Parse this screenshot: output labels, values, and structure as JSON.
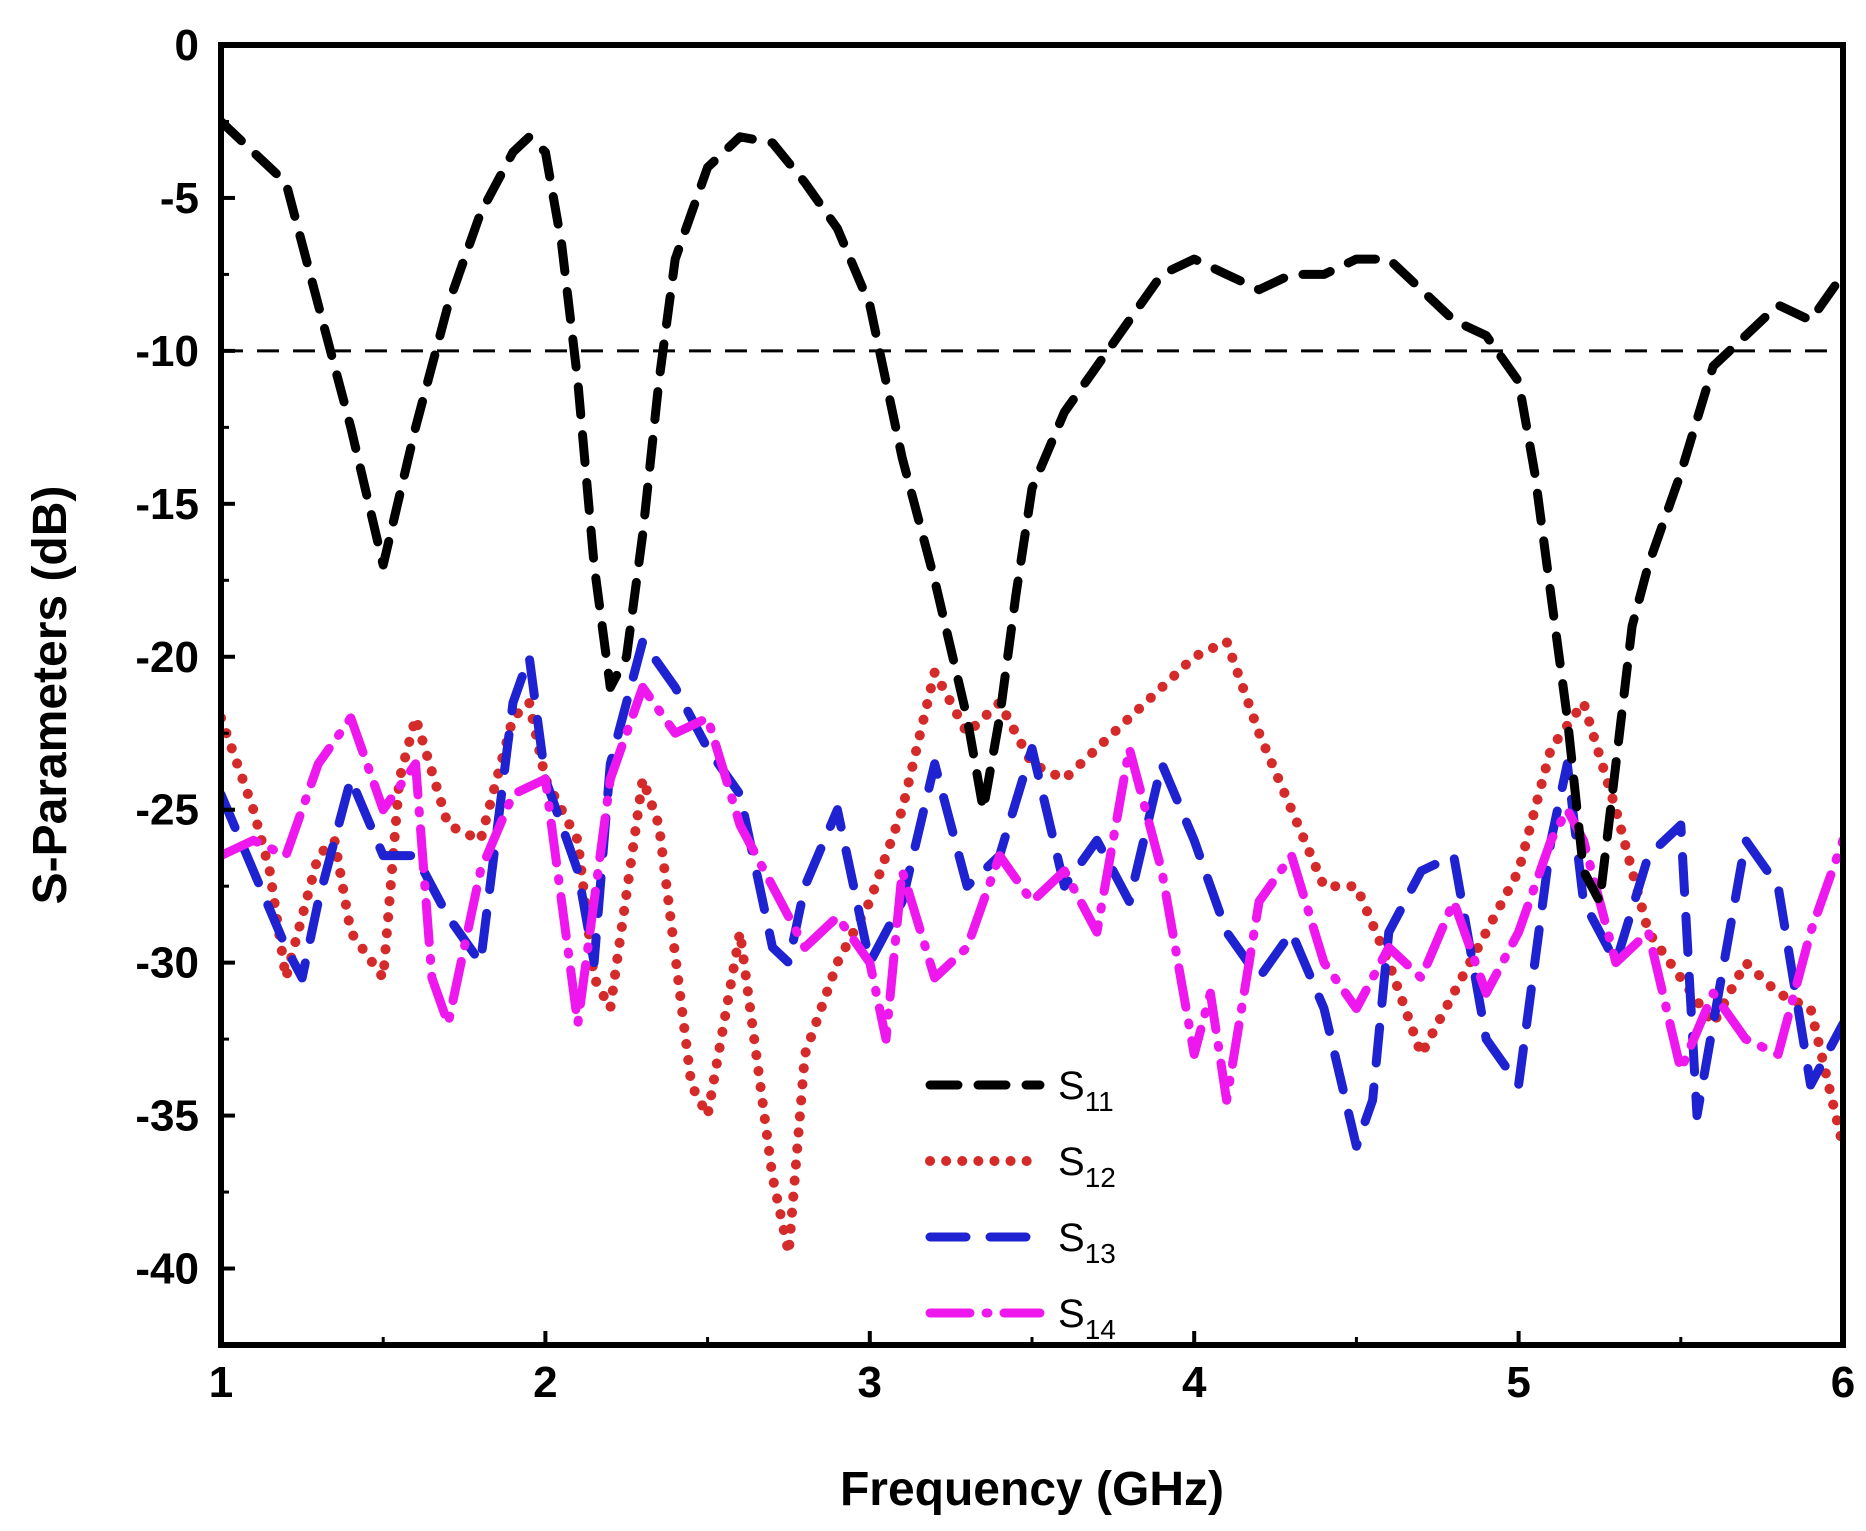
{
  "chart_data": {
    "type": "line",
    "title": "",
    "xlabel": "Frequency (GHz)",
    "ylabel": "S-Parameters (dB)",
    "xlim": [
      1,
      6
    ],
    "ylim": [
      -42.5,
      0
    ],
    "xticks": [
      1,
      2,
      3,
      4,
      5,
      6
    ],
    "yticks": [
      0,
      -5,
      -10,
      -15,
      -20,
      -25,
      -30,
      -35,
      -40
    ],
    "xtick_labels": [
      "1",
      "2",
      "3",
      "4",
      "5",
      "6"
    ],
    "ytick_labels": [
      "0",
      "-5",
      "-10",
      "-15",
      "-20",
      "-25",
      "-30",
      "-35",
      "-40"
    ],
    "reference_line": {
      "y": -10,
      "style": "dashed"
    },
    "legend_position": "bottom-center",
    "series": [
      {
        "name": "S11",
        "label_main": "S",
        "label_sub": "11",
        "color": "#000000",
        "style": "dash",
        "x": [
          1.0,
          1.1,
          1.2,
          1.3,
          1.4,
          1.5,
          1.6,
          1.7,
          1.8,
          1.9,
          1.95,
          2.0,
          2.05,
          2.1,
          2.15,
          2.2,
          2.25,
          2.3,
          2.35,
          2.4,
          2.5,
          2.6,
          2.7,
          2.8,
          2.9,
          3.0,
          3.05,
          3.1,
          3.2,
          3.3,
          3.35,
          3.4,
          3.45,
          3.5,
          3.6,
          3.7,
          3.8,
          3.9,
          4.0,
          4.1,
          4.2,
          4.3,
          4.4,
          4.5,
          4.6,
          4.7,
          4.8,
          4.9,
          5.0,
          5.05,
          5.1,
          5.15,
          5.2,
          5.25,
          5.3,
          5.35,
          5.4,
          5.5,
          5.6,
          5.7,
          5.8,
          5.9,
          6.0
        ],
        "y": [
          -2.5,
          -3.5,
          -4.5,
          -8.5,
          -12.5,
          -17.0,
          -12.5,
          -8.5,
          -5.5,
          -3.5,
          -3.0,
          -3.5,
          -6.5,
          -11.0,
          -17.0,
          -21.0,
          -20.0,
          -16.0,
          -11.0,
          -7.0,
          -4.0,
          -3.0,
          -3.2,
          -4.5,
          -6.0,
          -8.5,
          -11.0,
          -13.5,
          -17.5,
          -22.0,
          -25.0,
          -22.0,
          -18.0,
          -14.5,
          -12.0,
          -10.5,
          -9.0,
          -7.5,
          -7.0,
          -7.5,
          -8.0,
          -7.5,
          -7.5,
          -7.0,
          -7.0,
          -8.0,
          -9.0,
          -9.5,
          -11.0,
          -14.0,
          -18.0,
          -22.0,
          -27.0,
          -28.0,
          -23.5,
          -19.0,
          -17.0,
          -14.0,
          -10.5,
          -9.5,
          -8.5,
          -9.0,
          -7.5
        ]
      },
      {
        "name": "S12",
        "label_main": "S",
        "label_sub": "12",
        "color": "#d42a2a",
        "style": "dot",
        "x": [
          1.0,
          1.1,
          1.15,
          1.2,
          1.3,
          1.35,
          1.4,
          1.5,
          1.55,
          1.6,
          1.7,
          1.8,
          1.9,
          1.95,
          2.0,
          2.1,
          2.15,
          2.2,
          2.3,
          2.35,
          2.45,
          2.5,
          2.6,
          2.7,
          2.75,
          2.8,
          2.9,
          3.0,
          3.1,
          3.2,
          3.3,
          3.4,
          3.5,
          3.6,
          3.7,
          3.8,
          3.9,
          4.0,
          4.1,
          4.2,
          4.3,
          4.4,
          4.5,
          4.6,
          4.7,
          4.8,
          4.9,
          5.0,
          5.1,
          5.2,
          5.3,
          5.4,
          5.5,
          5.6,
          5.7,
          5.8,
          5.9,
          6.0
        ],
        "y": [
          -22.0,
          -25.0,
          -27.0,
          -30.5,
          -26.5,
          -26.0,
          -29.0,
          -30.5,
          -24.0,
          -22.0,
          -25.5,
          -26.0,
          -22.0,
          -21.5,
          -24.0,
          -26.0,
          -30.5,
          -31.5,
          -24.0,
          -25.5,
          -34.0,
          -35.0,
          -29.0,
          -37.0,
          -39.5,
          -33.0,
          -30.0,
          -28.0,
          -25.0,
          -20.5,
          -22.5,
          -21.5,
          -23.5,
          -24.0,
          -23.0,
          -22.0,
          -21.0,
          -20.0,
          -19.5,
          -22.5,
          -25.0,
          -27.5,
          -27.5,
          -30.0,
          -33.0,
          -31.0,
          -29.0,
          -27.0,
          -23.0,
          -21.5,
          -25.0,
          -29.0,
          -30.5,
          -32.0,
          -30.0,
          -31.0,
          -31.5,
          -36.0
        ]
      },
      {
        "name": "S13",
        "label_main": "S",
        "label_sub": "13",
        "color": "#1f22d0",
        "style": "longdash",
        "x": [
          1.0,
          1.1,
          1.2,
          1.25,
          1.3,
          1.4,
          1.5,
          1.6,
          1.7,
          1.8,
          1.9,
          1.95,
          2.0,
          2.1,
          2.15,
          2.2,
          2.25,
          2.3,
          2.4,
          2.5,
          2.6,
          2.7,
          2.75,
          2.8,
          2.9,
          3.0,
          3.1,
          3.2,
          3.3,
          3.4,
          3.5,
          3.6,
          3.7,
          3.8,
          3.9,
          4.0,
          4.1,
          4.2,
          4.3,
          4.4,
          4.5,
          4.55,
          4.6,
          4.7,
          4.8,
          4.9,
          5.0,
          5.1,
          5.15,
          5.2,
          5.3,
          5.4,
          5.5,
          5.55,
          5.6,
          5.7,
          5.8,
          5.9,
          6.0
        ],
        "y": [
          -24.5,
          -27.0,
          -29.5,
          -30.5,
          -28.0,
          -24.0,
          -26.5,
          -26.5,
          -28.5,
          -30.0,
          -21.5,
          -20.0,
          -24.0,
          -27.0,
          -30.0,
          -23.5,
          -21.5,
          -19.5,
          -21.0,
          -23.0,
          -24.5,
          -29.5,
          -30.0,
          -27.5,
          -25.0,
          -30.0,
          -28.0,
          -23.5,
          -27.5,
          -26.5,
          -23.0,
          -27.5,
          -26.0,
          -28.0,
          -23.5,
          -26.0,
          -29.0,
          -30.5,
          -29.0,
          -31.5,
          -36.0,
          -34.5,
          -29.0,
          -27.0,
          -26.5,
          -32.5,
          -34.0,
          -26.0,
          -23.5,
          -28.0,
          -30.0,
          -26.5,
          -25.5,
          -35.0,
          -32.0,
          -26.0,
          -27.5,
          -34.0,
          -32.0
        ]
      },
      {
        "name": "S14",
        "label_main": "S",
        "label_sub": "14",
        "color": "#ee17ee",
        "style": "dashdot",
        "x": [
          1.0,
          1.1,
          1.2,
          1.3,
          1.4,
          1.5,
          1.6,
          1.65,
          1.7,
          1.8,
          1.9,
          2.0,
          2.1,
          2.2,
          2.3,
          2.4,
          2.5,
          2.6,
          2.7,
          2.8,
          2.9,
          3.0,
          3.05,
          3.1,
          3.2,
          3.3,
          3.4,
          3.5,
          3.6,
          3.7,
          3.8,
          3.9,
          4.0,
          4.05,
          4.1,
          4.2,
          4.3,
          4.4,
          4.5,
          4.6,
          4.7,
          4.8,
          4.9,
          5.0,
          5.1,
          5.15,
          5.2,
          5.3,
          5.4,
          5.5,
          5.6,
          5.7,
          5.8,
          5.9,
          6.0
        ],
        "y": [
          -26.5,
          -26.0,
          -26.5,
          -23.5,
          -22.0,
          -25.0,
          -23.5,
          -30.5,
          -32.0,
          -27.0,
          -24.5,
          -24.0,
          -32.0,
          -24.0,
          -21.0,
          -22.5,
          -22.0,
          -25.5,
          -27.5,
          -29.5,
          -28.5,
          -30.0,
          -32.5,
          -27.0,
          -30.5,
          -29.5,
          -26.5,
          -28.0,
          -27.0,
          -29.0,
          -23.0,
          -27.0,
          -33.0,
          -31.0,
          -34.5,
          -28.0,
          -26.5,
          -30.0,
          -31.5,
          -29.5,
          -30.5,
          -28.0,
          -31.0,
          -29.0,
          -26.0,
          -25.0,
          -26.0,
          -30.0,
          -29.0,
          -33.5,
          -31.0,
          -32.5,
          -33.0,
          -29.0,
          -26.0
        ]
      }
    ]
  }
}
